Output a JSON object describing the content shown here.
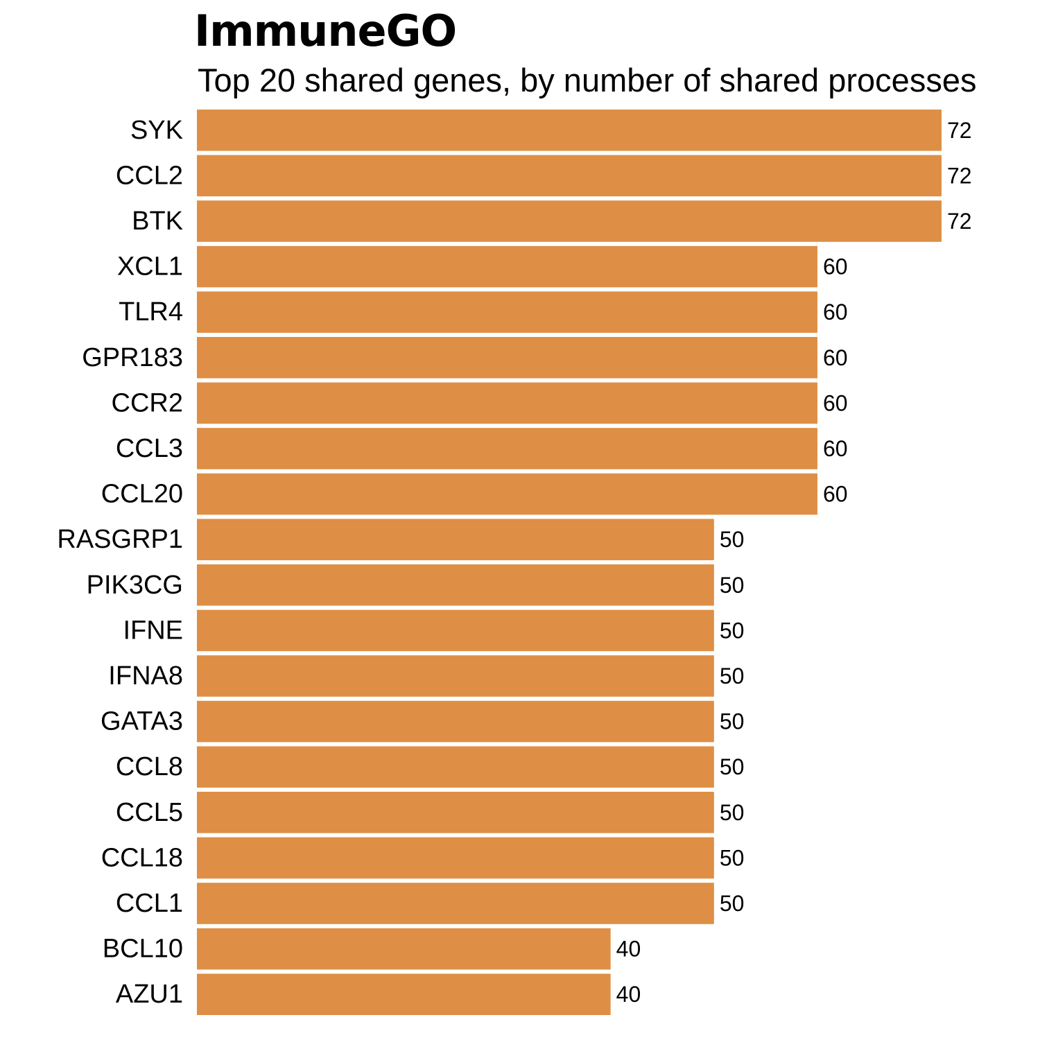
{
  "chart_data": {
    "type": "bar",
    "orientation": "horizontal",
    "title": "ImmuneGO",
    "subtitle": "Top 20 shared genes, by number of shared processes",
    "categories": [
      "SYK",
      "CCL2",
      "BTK",
      "XCL1",
      "TLR4",
      "GPR183",
      "CCR2",
      "CCL3",
      "CCL20",
      "RASGRP1",
      "PIK3CG",
      "IFNE",
      "IFNA8",
      "GATA3",
      "CCL8",
      "CCL5",
      "CCL18",
      "CCL1",
      "BCL10",
      "AZU1"
    ],
    "values": [
      72,
      72,
      72,
      60,
      60,
      60,
      60,
      60,
      60,
      50,
      50,
      50,
      50,
      50,
      50,
      50,
      50,
      50,
      40,
      40
    ],
    "xlim": [
      0,
      72
    ],
    "bar_color": "#DE8F45",
    "grid": false,
    "data_labels": true
  }
}
